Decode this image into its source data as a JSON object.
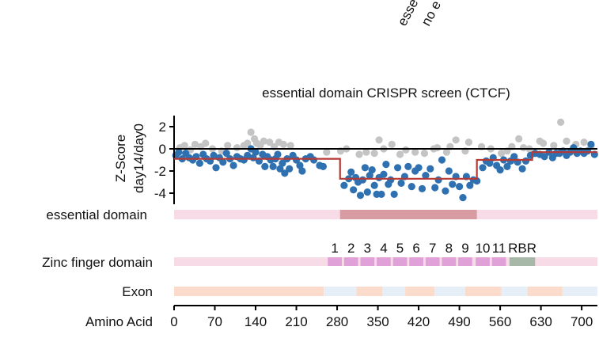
{
  "chart_data": {
    "type": "scatter",
    "title": "essential domain CRISPR screen (CTCF)",
    "top_legend": [
      "esse",
      "no e"
    ],
    "ylabel": [
      "Z-Score",
      "day14/day0"
    ],
    "xlabel": "Amino Acid",
    "xlim": [
      0,
      727
    ],
    "ylim": [
      -5,
      3
    ],
    "x_ticks": [
      0,
      70,
      140,
      210,
      280,
      350,
      420,
      490,
      560,
      630,
      700
    ],
    "y_ticks": [
      2,
      0,
      -2,
      -4
    ],
    "grid": false,
    "colors": {
      "essential_points": "#2f71b0",
      "nonessential_points": "#c4c4c4",
      "segment_line": "#b53a35",
      "domain_background": "#f7dbe6",
      "essential_domain": "#d89ba2",
      "zinc_finger": "#dfa1d8",
      "rbr": "#a7b8a8",
      "exon_a": "#fadbcc",
      "exon_b": "#e6eff7"
    },
    "series": [
      {
        "points": [
          [
            3,
            -0.6
          ],
          [
            8,
            -0.3
          ],
          [
            14,
            -0.9
          ],
          [
            20,
            -0.4
          ],
          [
            26,
            -0.8
          ],
          [
            32,
            -1.0
          ],
          [
            38,
            -0.7
          ],
          [
            44,
            -1.3
          ],
          [
            50,
            -0.5
          ],
          [
            56,
            -0.9
          ],
          [
            62,
            -1.1
          ],
          [
            68,
            -0.6
          ],
          [
            72,
            -1.7
          ],
          [
            78,
            -0.8
          ],
          [
            84,
            -1.2
          ],
          [
            90,
            -0.4
          ],
          [
            96,
            -0.9
          ],
          [
            102,
            -1.5
          ],
          [
            108,
            -0.7
          ],
          [
            114,
            -0.9
          ],
          [
            120,
            -1.0
          ],
          [
            126,
            -0.6
          ],
          [
            132,
            0.0
          ],
          [
            136,
            -0.8
          ],
          [
            140,
            -0.3
          ],
          [
            146,
            -1.1
          ],
          [
            152,
            -0.5
          ],
          [
            156,
            -1.6
          ],
          [
            160,
            -0.7
          ],
          [
            166,
            -1.0
          ],
          [
            170,
            -1.6
          ],
          [
            174,
            -0.9
          ],
          [
            178,
            -0.5
          ],
          [
            182,
            -1.8
          ],
          [
            186,
            -1.3
          ],
          [
            190,
            -2.2
          ],
          [
            194,
            -0.9
          ],
          [
            198,
            -1.8
          ],
          [
            204,
            -0.6
          ],
          [
            210,
            -1.0
          ],
          [
            216,
            -1.5
          ],
          [
            220,
            -2.0
          ],
          [
            226,
            -0.9
          ],
          [
            234,
            -0.7
          ],
          [
            240,
            -1.0
          ],
          [
            250,
            -1.5
          ],
          [
            256,
            -1.6
          ],
          [
            292,
            -3.3
          ],
          [
            300,
            -2.7
          ],
          [
            304,
            -2.1
          ],
          [
            308,
            -3.7
          ],
          [
            312,
            -2.6
          ],
          [
            316,
            -3.0
          ],
          [
            320,
            -4.2
          ],
          [
            324,
            -2.8
          ],
          [
            328,
            -1.7
          ],
          [
            332,
            -3.9
          ],
          [
            336,
            -2.4
          ],
          [
            340,
            -1.9
          ],
          [
            344,
            -3.3
          ],
          [
            348,
            -4.1
          ],
          [
            352,
            -2.6
          ],
          [
            356,
            -4.1
          ],
          [
            360,
            -2.3
          ],
          [
            364,
            -1.4
          ],
          [
            368,
            -3.2
          ],
          [
            372,
            -2.8
          ],
          [
            378,
            -4.1
          ],
          [
            384,
            -1.7
          ],
          [
            390,
            -3.1
          ],
          [
            396,
            -2.5
          ],
          [
            402,
            -1.6
          ],
          [
            408,
            -3.4
          ],
          [
            414,
            -2.0
          ],
          [
            420,
            -1.7
          ],
          [
            426,
            -3.6
          ],
          [
            432,
            -2.4
          ],
          [
            440,
            -1.8
          ],
          [
            448,
            -3.5
          ],
          [
            454,
            -2.8
          ],
          [
            460,
            -1.0
          ],
          [
            466,
            -3.8
          ],
          [
            472,
            -2.0
          ],
          [
            478,
            -3.2
          ],
          [
            484,
            -2.5
          ],
          [
            490,
            -3.4
          ],
          [
            496,
            -4.4
          ],
          [
            502,
            -2.5
          ],
          [
            508,
            -3.3
          ],
          [
            514,
            -2.8
          ],
          [
            520,
            -2.9
          ],
          [
            530,
            -1.7
          ],
          [
            536,
            -1.1
          ],
          [
            542,
            -1.3
          ],
          [
            548,
            -0.8
          ],
          [
            554,
            -1.5
          ],
          [
            560,
            -1.9
          ],
          [
            566,
            -1.0
          ],
          [
            572,
            -1.6
          ],
          [
            578,
            -1.1
          ],
          [
            584,
            -0.7
          ],
          [
            590,
            -1.2
          ],
          [
            598,
            -1.8
          ],
          [
            604,
            -1.1
          ],
          [
            612,
            -0.6
          ],
          [
            620,
            -0.4
          ],
          [
            628,
            -0.5
          ],
          [
            636,
            -0.7
          ],
          [
            644,
            -0.3
          ],
          [
            650,
            -0.8
          ],
          [
            656,
            -0.4
          ],
          [
            662,
            -0.4
          ],
          [
            668,
            -0.2
          ],
          [
            674,
            -0.6
          ],
          [
            680,
            -0.3
          ],
          [
            686,
            0.1
          ],
          [
            692,
            -0.4
          ],
          [
            698,
            -0.2
          ],
          [
            704,
            -0.4
          ],
          [
            710,
            -0.2
          ],
          [
            716,
            0.4
          ],
          [
            722,
            -0.5
          ]
        ]
      },
      {
        "points": [
          [
            10,
            0.1
          ],
          [
            18,
            0.3
          ],
          [
            28,
            -0.1
          ],
          [
            36,
            0.4
          ],
          [
            46,
            0.2
          ],
          [
            54,
            0.5
          ],
          [
            66,
            0.0
          ],
          [
            82,
            -0.2
          ],
          [
            92,
            0.3
          ],
          [
            108,
            0.1
          ],
          [
            120,
            0.3
          ],
          [
            126,
            0.5
          ],
          [
            132,
            1.5
          ],
          [
            138,
            0.9
          ],
          [
            142,
            0.5
          ],
          [
            148,
            0.3
          ],
          [
            154,
            0.7
          ],
          [
            164,
            0.6
          ],
          [
            172,
            0.2
          ],
          [
            180,
            0.6
          ],
          [
            188,
            0.4
          ],
          [
            200,
            0.3
          ],
          [
            262,
            -0.3
          ],
          [
            286,
            -0.2
          ],
          [
            296,
            0.0
          ],
          [
            318,
            -0.5
          ],
          [
            330,
            -0.3
          ],
          [
            344,
            -0.4
          ],
          [
            352,
            0.8
          ],
          [
            360,
            0.0
          ],
          [
            374,
            0.4
          ],
          [
            388,
            -0.5
          ],
          [
            398,
            -0.1
          ],
          [
            414,
            -0.3
          ],
          [
            430,
            -0.4
          ],
          [
            446,
            0.0
          ],
          [
            452,
            0.1
          ],
          [
            468,
            -0.3
          ],
          [
            474,
            0.2
          ],
          [
            484,
            0.8
          ],
          [
            500,
            -0.2
          ],
          [
            506,
            0.6
          ],
          [
            528,
            0.2
          ],
          [
            544,
            0.0
          ],
          [
            562,
            -0.4
          ],
          [
            572,
            -0.2
          ],
          [
            580,
            0.2
          ],
          [
            592,
            0.9
          ],
          [
            600,
            0.1
          ],
          [
            610,
            0.0
          ],
          [
            628,
            0.7
          ],
          [
            634,
            0.5
          ],
          [
            652,
            0.3
          ],
          [
            664,
            2.4
          ],
          [
            674,
            0.7
          ],
          [
            690,
            0.4
          ],
          [
            704,
            0.6
          ],
          [
            716,
            0.2
          ]
        ]
      }
    ],
    "segments": [
      {
        "x0": 0,
        "x1": 285,
        "y": -0.9
      },
      {
        "x0": 285,
        "x1": 520,
        "y": -2.7
      },
      {
        "x0": 520,
        "x1": 615,
        "y": -1.0
      },
      {
        "x0": 615,
        "x1": 727,
        "y": -0.3
      }
    ],
    "tracks": {
      "essential_domain": {
        "label": "essential domain",
        "range": [
          0,
          727
        ],
        "highlight": [
          285,
          520
        ]
      },
      "zinc_finger": {
        "label": "Zinc finger domain",
        "range": [
          0,
          727
        ],
        "fingers": [
          {
            "label": "1",
            "start": 264,
            "end": 288
          },
          {
            "label": "2",
            "start": 292,
            "end": 316
          },
          {
            "label": "3",
            "start": 320,
            "end": 344
          },
          {
            "label": "4",
            "start": 348,
            "end": 372
          },
          {
            "label": "5",
            "start": 376,
            "end": 400
          },
          {
            "label": "6",
            "start": 404,
            "end": 428
          },
          {
            "label": "7",
            "start": 432,
            "end": 456
          },
          {
            "label": "8",
            "start": 460,
            "end": 484
          },
          {
            "label": "9",
            "start": 488,
            "end": 512
          },
          {
            "label": "10",
            "start": 518,
            "end": 542
          },
          {
            "label": "11",
            "start": 546,
            "end": 570
          }
        ],
        "rbr": {
          "label": "RBR",
          "start": 576,
          "end": 620
        }
      },
      "exon": {
        "label": "Exon",
        "segments": [
          {
            "start": 0,
            "end": 257,
            "color": "exon_a"
          },
          {
            "start": 257,
            "end": 313,
            "color": "exon_b"
          },
          {
            "start": 313,
            "end": 358,
            "color": "exon_a"
          },
          {
            "start": 358,
            "end": 397,
            "color": "exon_b"
          },
          {
            "start": 397,
            "end": 447,
            "color": "exon_a"
          },
          {
            "start": 447,
            "end": 500,
            "color": "exon_b"
          },
          {
            "start": 500,
            "end": 562,
            "color": "exon_a"
          },
          {
            "start": 562,
            "end": 607,
            "color": "exon_b"
          },
          {
            "start": 607,
            "end": 667,
            "color": "exon_a"
          },
          {
            "start": 667,
            "end": 727,
            "color": "exon_b"
          }
        ]
      }
    }
  }
}
